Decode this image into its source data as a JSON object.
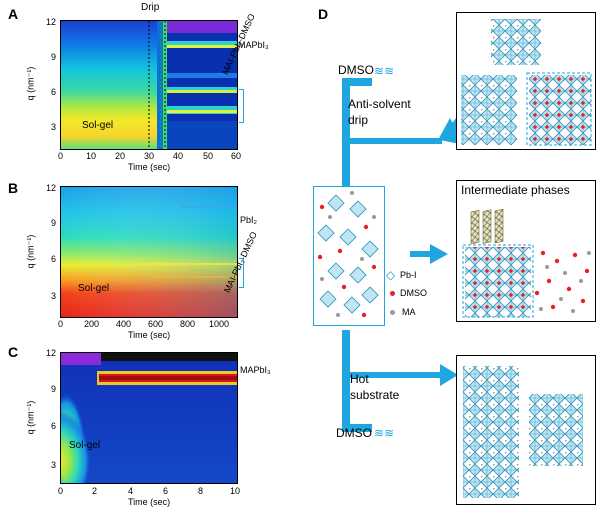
{
  "panels": {
    "A": {
      "letter": "A",
      "drip_label": "Drip",
      "sol_gel": "Sol-gel",
      "right_top": "MAPbI₃",
      "right_mid": "MAI-PbI₂-DMSO",
      "xlabel": "Time (sec)",
      "ylabel": "q (nm⁻¹)",
      "xticks": [
        "0",
        "10",
        "20",
        "30",
        "40",
        "50",
        "60"
      ],
      "yticks": [
        "12",
        "9",
        "6",
        "3"
      ]
    },
    "B": {
      "letter": "B",
      "sol_gel": "Sol-gel",
      "right_top": "PbI₂",
      "right_mid": "MAI-PbI₂-DMSO",
      "xlabel": "Time (sec)",
      "ylabel": "q (nm⁻¹)",
      "xticks": [
        "0",
        "200",
        "400",
        "600",
        "800",
        "1000"
      ],
      "yticks": [
        "12",
        "9",
        "6",
        "3"
      ]
    },
    "C": {
      "letter": "C",
      "sol_gel": "Sol-gel",
      "right_top": "MAPbI₃",
      "xlabel": "Time (sec)",
      "ylabel": "q (nm⁻¹)",
      "xticks": [
        "0",
        "2",
        "4",
        "6",
        "8",
        "10"
      ],
      "yticks": [
        "12",
        "9",
        "6",
        "3"
      ]
    },
    "D": {
      "letter": "D",
      "dmso_top": "DMSO",
      "antisolvent": [
        "Anti-solvent",
        "drip"
      ],
      "hot": [
        "Hot",
        "substrate"
      ],
      "dmso_bottom": "DMSO",
      "intermediate": "Intermediate phases",
      "legend": [
        "Pb-I",
        "DMSO",
        "MA"
      ]
    }
  },
  "colors": {
    "accent": "#1fa6e0",
    "octa_fill": "#bfe6f2",
    "octa_stroke": "#2a8fb8",
    "dmso_red": "#e8202a",
    "ma_gray": "#9a9a9a"
  }
}
